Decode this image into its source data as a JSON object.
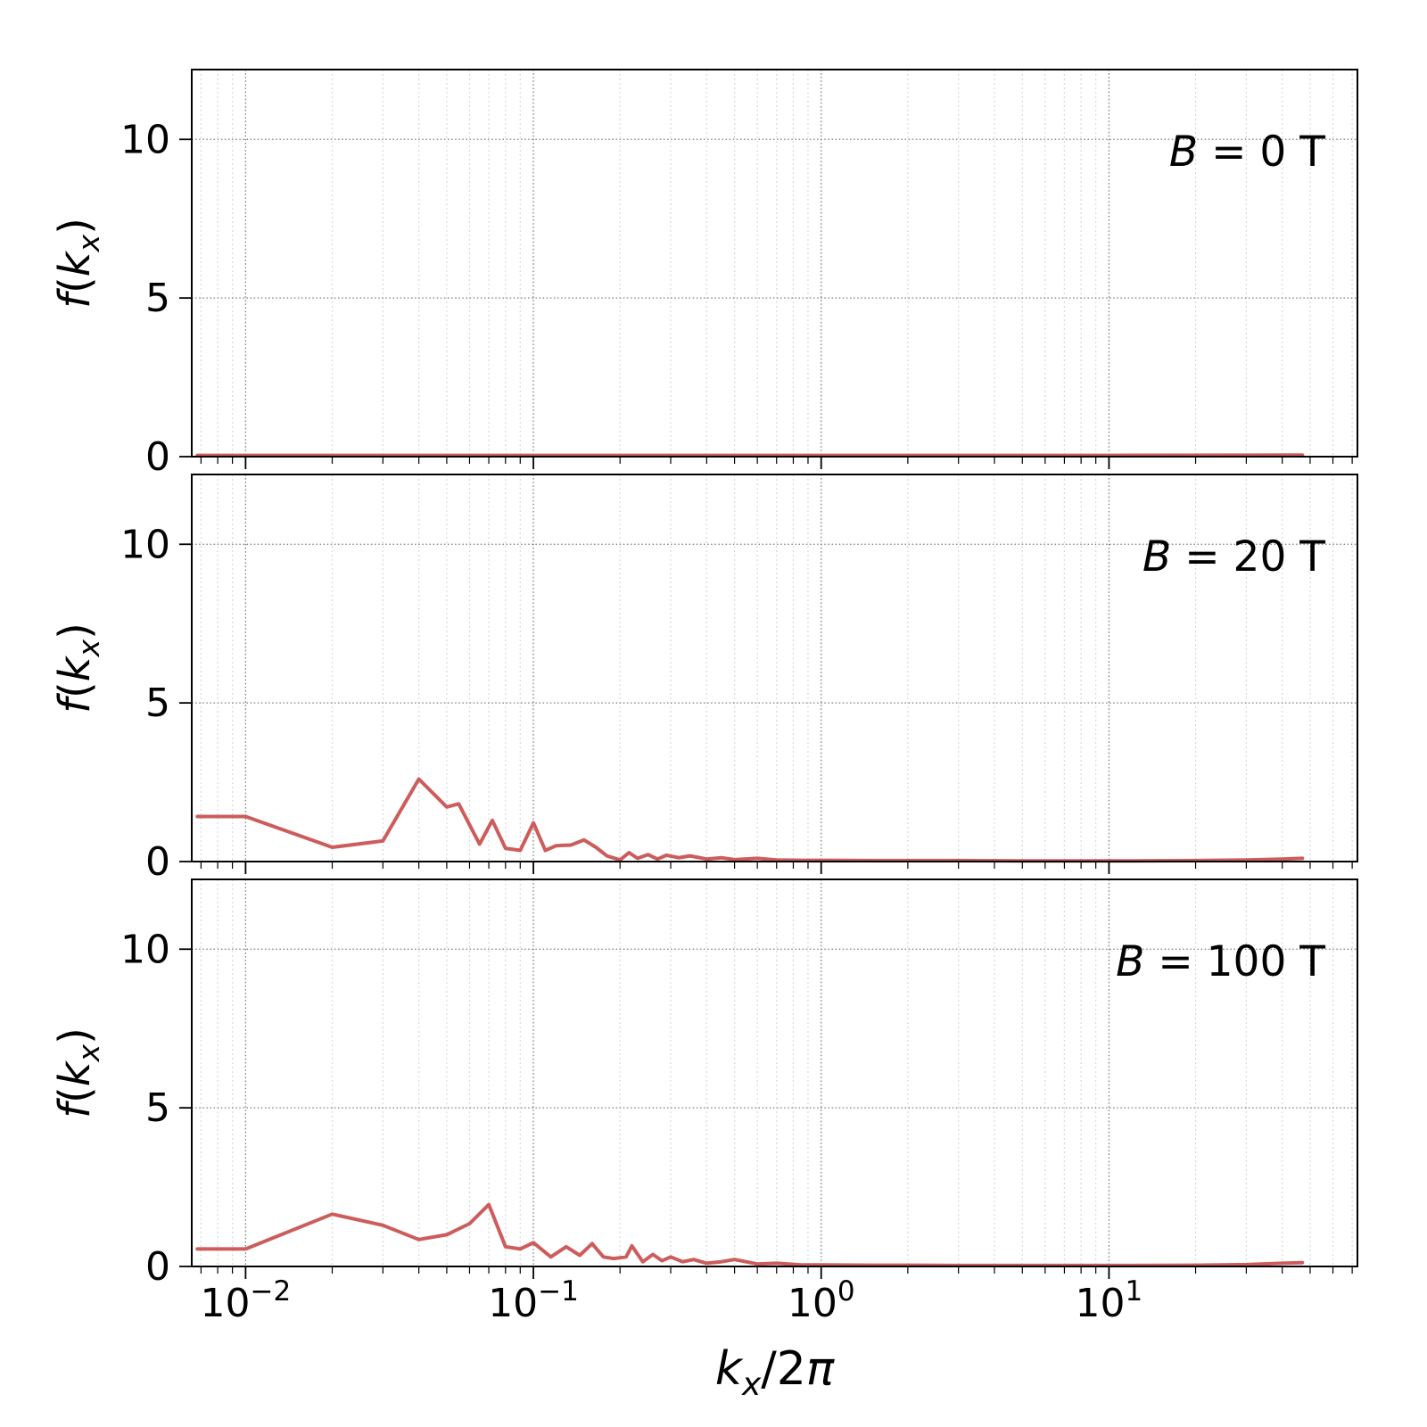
{
  "figure": {
    "background": "#ffffff"
  },
  "chart_data": {
    "type": "line",
    "xscale": "log",
    "xlabel": "k_x/2π",
    "ylabel": "f(k_x)",
    "xlim": [
      0.0065,
      73
    ],
    "ylim": [
      0,
      12.2
    ],
    "x_major_ticks": [
      0.01,
      0.1,
      1,
      10
    ],
    "x_tick_labels": [
      {
        "base": "10",
        "exp": "−2"
      },
      {
        "base": "10",
        "exp": "−1"
      },
      {
        "base": "10",
        "exp": "0"
      },
      {
        "base": "10",
        "exp": "1"
      }
    ],
    "y_ticks": [
      0,
      5,
      10
    ],
    "grid": true,
    "legend": "none",
    "line_color": "#cd5c5c",
    "panels": [
      {
        "label": "B = 0 T",
        "points": [
          [
            0.0068,
            0.04
          ],
          [
            0.1,
            0.04
          ],
          [
            1,
            0.04
          ],
          [
            10,
            0.04
          ],
          [
            47,
            0.05
          ]
        ]
      },
      {
        "label": "B = 20 T",
        "points": [
          [
            0.0068,
            1.42
          ],
          [
            0.01,
            1.42
          ],
          [
            0.02,
            0.45
          ],
          [
            0.03,
            0.65
          ],
          [
            0.04,
            2.6
          ],
          [
            0.05,
            1.72
          ],
          [
            0.055,
            1.82
          ],
          [
            0.065,
            0.55
          ],
          [
            0.072,
            1.3
          ],
          [
            0.08,
            0.42
          ],
          [
            0.09,
            0.35
          ],
          [
            0.1,
            1.22
          ],
          [
            0.11,
            0.35
          ],
          [
            0.12,
            0.5
          ],
          [
            0.135,
            0.52
          ],
          [
            0.15,
            0.68
          ],
          [
            0.165,
            0.45
          ],
          [
            0.18,
            0.18
          ],
          [
            0.2,
            0.05
          ],
          [
            0.215,
            0.28
          ],
          [
            0.23,
            0.1
          ],
          [
            0.25,
            0.22
          ],
          [
            0.27,
            0.08
          ],
          [
            0.29,
            0.2
          ],
          [
            0.32,
            0.12
          ],
          [
            0.35,
            0.18
          ],
          [
            0.4,
            0.08
          ],
          [
            0.45,
            0.12
          ],
          [
            0.5,
            0.06
          ],
          [
            0.6,
            0.1
          ],
          [
            0.7,
            0.05
          ],
          [
            0.85,
            0.04
          ],
          [
            1,
            0.04
          ],
          [
            1.5,
            0.03
          ],
          [
            2,
            0.03
          ],
          [
            3,
            0.03
          ],
          [
            5,
            0.02
          ],
          [
            8,
            0.02
          ],
          [
            12,
            0.02
          ],
          [
            20,
            0.03
          ],
          [
            30,
            0.05
          ],
          [
            40,
            0.08
          ],
          [
            47,
            0.1
          ]
        ]
      },
      {
        "label": "B = 100 T",
        "points": [
          [
            0.0068,
            0.55
          ],
          [
            0.01,
            0.55
          ],
          [
            0.02,
            1.65
          ],
          [
            0.03,
            1.3
          ],
          [
            0.04,
            0.85
          ],
          [
            0.05,
            1.0
          ],
          [
            0.06,
            1.35
          ],
          [
            0.07,
            1.95
          ],
          [
            0.08,
            0.62
          ],
          [
            0.09,
            0.55
          ],
          [
            0.1,
            0.75
          ],
          [
            0.115,
            0.3
          ],
          [
            0.13,
            0.62
          ],
          [
            0.145,
            0.35
          ],
          [
            0.16,
            0.72
          ],
          [
            0.175,
            0.3
          ],
          [
            0.19,
            0.25
          ],
          [
            0.21,
            0.3
          ],
          [
            0.22,
            0.65
          ],
          [
            0.24,
            0.15
          ],
          [
            0.26,
            0.38
          ],
          [
            0.28,
            0.18
          ],
          [
            0.3,
            0.3
          ],
          [
            0.33,
            0.15
          ],
          [
            0.36,
            0.22
          ],
          [
            0.4,
            0.1
          ],
          [
            0.45,
            0.15
          ],
          [
            0.5,
            0.22
          ],
          [
            0.6,
            0.08
          ],
          [
            0.7,
            0.1
          ],
          [
            0.85,
            0.05
          ],
          [
            1,
            0.05
          ],
          [
            1.5,
            0.04
          ],
          [
            2,
            0.04
          ],
          [
            3,
            0.03
          ],
          [
            5,
            0.03
          ],
          [
            8,
            0.03
          ],
          [
            12,
            0.03
          ],
          [
            20,
            0.04
          ],
          [
            30,
            0.06
          ],
          [
            40,
            0.1
          ],
          [
            47,
            0.12
          ]
        ]
      }
    ]
  }
}
